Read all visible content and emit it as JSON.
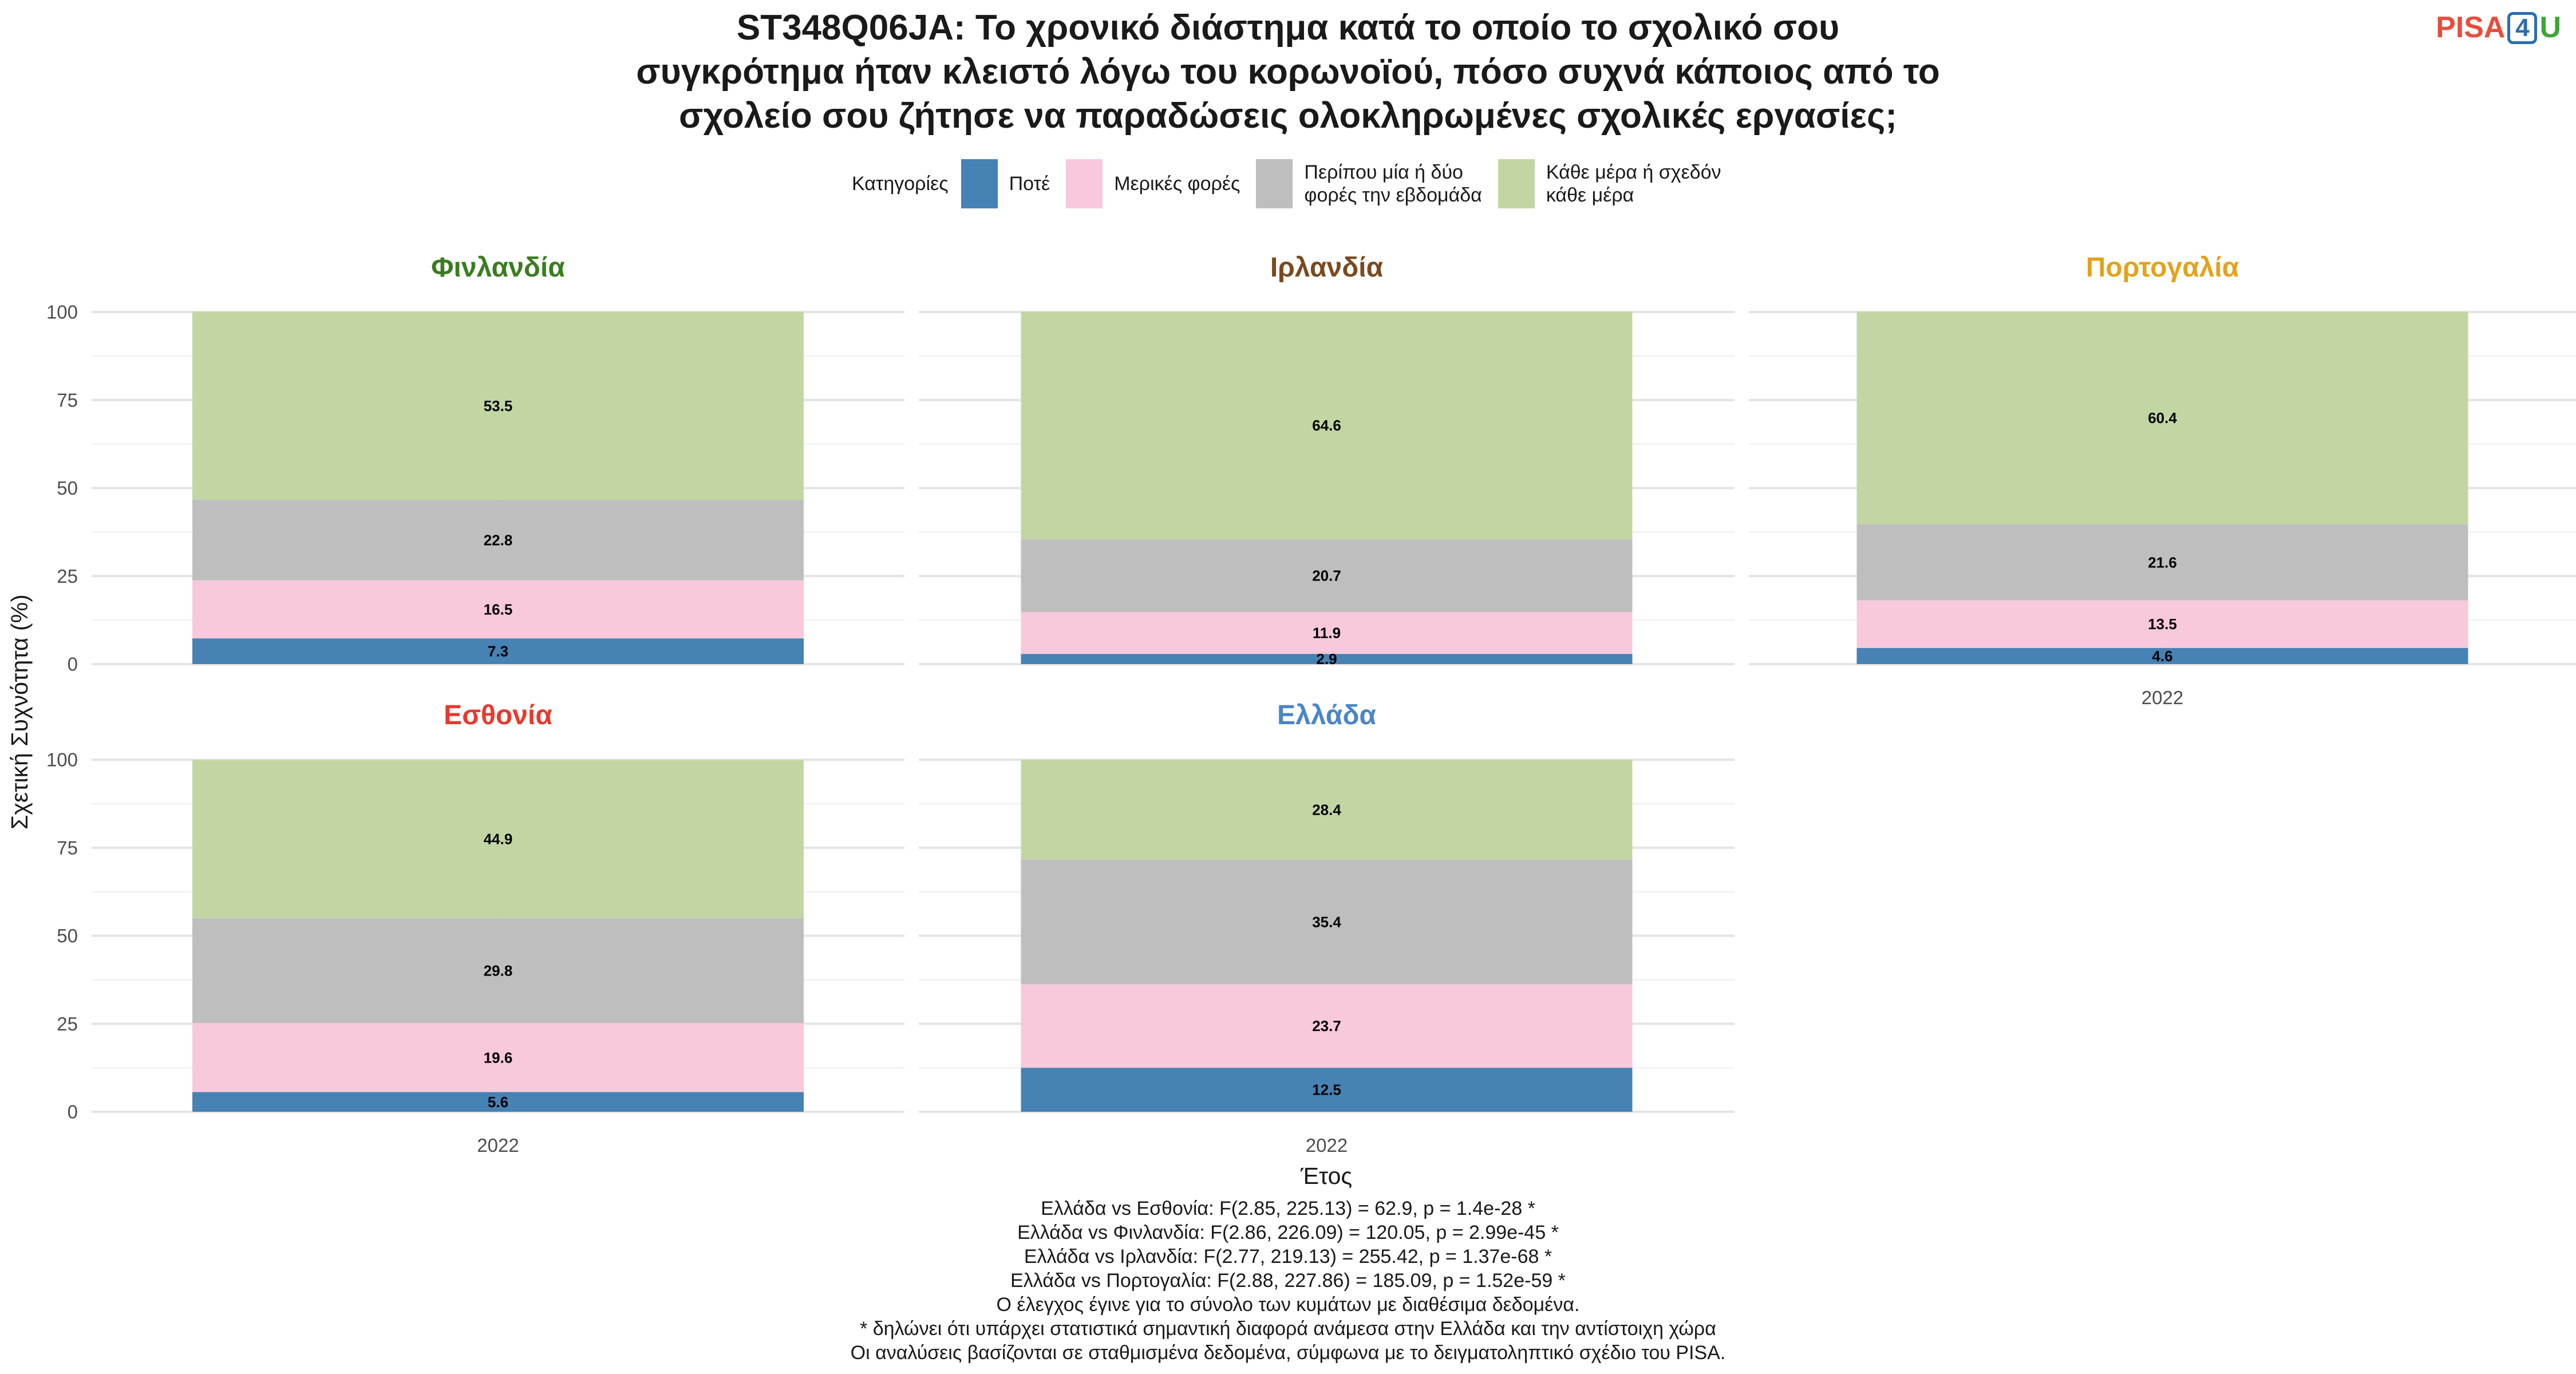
{
  "title_lines": [
    "ST348Q06JA: Το χρονικό διάστημα κατά το οποίο το σχολικό σου",
    "συγκρότημα ήταν κλειστό λόγω του κορωνοϊού, πόσο συχνά κάποιος από το",
    "σχολείο σου ζήτησε να παραδώσεις ολοκληρωμένες σχολικές εργασίες;"
  ],
  "logo": {
    "part1": "PISA",
    "part2": "4",
    "part3": "U",
    "colors": [
      "#e74c3c",
      "#2a6eb0",
      "#3fa535"
    ]
  },
  "legend": {
    "title": "Κατηγορίες",
    "items": [
      {
        "label": "Ποτέ",
        "color": "#4682b4"
      },
      {
        "label": "Μερικές φορές",
        "color": "#f8c8dc"
      },
      {
        "label": "Περίπου μία ή δύο\nφορές την εβδομάδα",
        "color": "#bebebe"
      },
      {
        "label": "Κάθε μέρα ή σχεδόν\nκάθε μέρα",
        "color": "#c2d6a4"
      }
    ]
  },
  "chart_data": {
    "type": "bar",
    "stacked": true,
    "facet": true,
    "xlabel": "Έτος",
    "ylabel": "Σχετική Συχνότητα (%)",
    "ylim": [
      0,
      100
    ],
    "yticks": [
      0,
      25,
      50,
      75,
      100
    ],
    "grid": true,
    "legend_position": "top",
    "categories": [
      "2022"
    ],
    "series_names": [
      "Ποτέ",
      "Μερικές φορές",
      "Περίπου μία ή δύο φορές την εβδομάδα",
      "Κάθε μέρα ή σχεδόν κάθε μέρα"
    ],
    "series_colors": [
      "#4682b4",
      "#f8c8dc",
      "#bebebe",
      "#c2d6a4"
    ],
    "panels": [
      {
        "country": "Φινλανδία",
        "title_color": "#3a7d1e",
        "year": "2022",
        "values": [
          7.3,
          16.5,
          22.8,
          53.5
        ],
        "labels": [
          "7.3",
          "16.5",
          "22.8",
          "53.5"
        ]
      },
      {
        "country": "Ιρλανδία",
        "title_color": "#7a4a1f",
        "year": "2022",
        "values": [
          2.9,
          11.9,
          20.7,
          64.6
        ],
        "labels": [
          "2.9",
          "11.9",
          "20.7",
          "64.6"
        ]
      },
      {
        "country": "Πορτογαλία",
        "title_color": "#e3a21a",
        "year": "2022",
        "values": [
          4.6,
          13.5,
          21.6,
          60.4
        ],
        "labels": [
          "4.6",
          "13.5",
          "21.6",
          "60.4"
        ]
      },
      {
        "country": "Εσθονία",
        "title_color": "#e8392f",
        "year": "2022",
        "values": [
          5.6,
          19.6,
          29.8,
          44.9
        ],
        "labels": [
          "5.6",
          "19.6",
          "29.8",
          "44.9"
        ]
      },
      {
        "country": "Ελλάδα",
        "title_color": "#4a86c5",
        "year": "2022",
        "values": [
          12.5,
          23.7,
          35.4,
          28.4
        ],
        "labels": [
          "12.5",
          "23.7",
          "35.4",
          "28.4"
        ]
      }
    ]
  },
  "notes": [
    "Ελλάδα vs Εσθονία: F(2.85, 225.13) = 62.9, p = 1.4e-28 *",
    "Ελλάδα vs Φινλανδία: F(2.86, 226.09) = 120.05, p = 2.99e-45 *",
    "Ελλάδα vs Ιρλανδία: F(2.77, 219.13) = 255.42, p = 1.37e-68 *",
    "Ελλάδα vs Πορτογαλία: F(2.88, 227.86) = 185.09, p = 1.52e-59 *",
    "Ο έλεγχος έγινε για το σύνολο των κυμάτων με διαθέσιμα δεδομένα.",
    "* δηλώνει ότι υπάρχει στατιστικά σημαντική διαφορά ανάμεσα στην Ελλάδα και την αντίστοιχη χώρα",
    "Οι αναλύσεις βασίζονται σε σταθμισμένα δεδομένα, σύμφωνα με το δειγματοληπτικό σχέδιο του PISA."
  ]
}
